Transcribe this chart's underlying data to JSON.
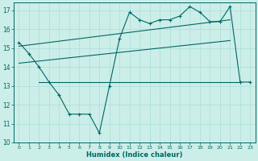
{
  "xlabel": "Humidex (Indice chaleur)",
  "bg_color": "#cceee8",
  "line_color": "#006666",
  "grid_color": "#aaddda",
  "xlim": [
    -0.5,
    23.5
  ],
  "ylim": [
    10,
    17.4
  ],
  "xticks": [
    0,
    1,
    2,
    3,
    4,
    5,
    6,
    7,
    8,
    9,
    10,
    11,
    12,
    13,
    14,
    15,
    16,
    17,
    18,
    19,
    20,
    21,
    22,
    23
  ],
  "yticks": [
    10,
    11,
    12,
    13,
    14,
    15,
    16,
    17
  ],
  "main_x": [
    0,
    1,
    2,
    3,
    4,
    5,
    6,
    7,
    8,
    9,
    10,
    11,
    12,
    13,
    14,
    15,
    16,
    17,
    18,
    19,
    20,
    21,
    22,
    23
  ],
  "main_y": [
    15.3,
    14.7,
    14.0,
    13.2,
    12.5,
    11.5,
    11.5,
    11.5,
    10.5,
    13.0,
    15.5,
    16.9,
    16.5,
    16.3,
    16.5,
    16.5,
    16.7,
    17.2,
    16.9,
    16.4,
    16.4,
    17.2,
    13.2,
    13.2
  ],
  "trend1_x": [
    0,
    21
  ],
  "trend1_y": [
    15.1,
    16.5
  ],
  "trend2_x": [
    0,
    21
  ],
  "trend2_y": [
    14.2,
    15.4
  ],
  "hline_y": 13.2,
  "hline_x_start": 2,
  "hline_x_end": 22
}
